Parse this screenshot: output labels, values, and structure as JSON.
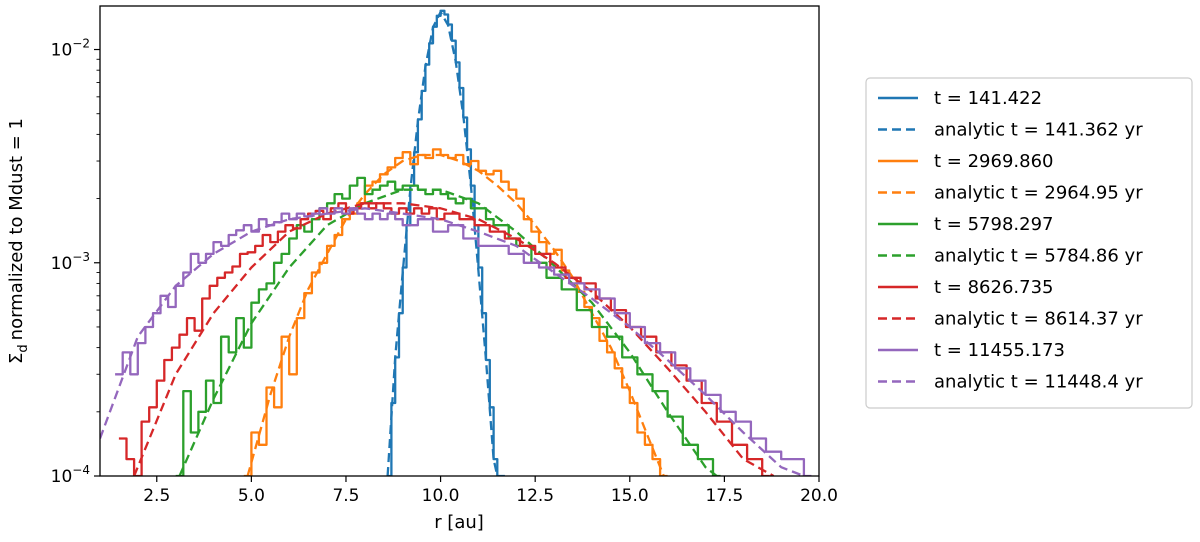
{
  "chart_data": {
    "type": "line",
    "title": "",
    "xlabel": "r [au]",
    "ylabel": "normalized to Mdust = 1",
    "ylabel_symbol": "Σ",
    "ylabel_subscript": "d",
    "xlim": [
      1.0,
      20.0
    ],
    "ylim": [
      0.0001,
      0.016
    ],
    "yscale": "log",
    "grid": false,
    "legend_position": "outside-right",
    "x_ticks": [
      2.5,
      5.0,
      7.5,
      10.0,
      12.5,
      15.0,
      17.5,
      20.0
    ],
    "x_tick_labels": [
      "2.5",
      "5.0",
      "7.5",
      "10.0",
      "12.5",
      "15.0",
      "17.5",
      "20.0"
    ],
    "y_major_ticks": [
      0.0001,
      0.001,
      0.01
    ],
    "y_tick_labels": [
      {
        "base": "10",
        "exp": "−4"
      },
      {
        "base": "10",
        "exp": "−3"
      },
      {
        "base": "10",
        "exp": "−2"
      }
    ],
    "series": [
      {
        "name": "t = 141.422",
        "style": "solid-step",
        "color": "#1f77b4",
        "x": [
          8.6,
          8.7,
          8.8,
          8.9,
          9.0,
          9.1,
          9.2,
          9.3,
          9.4,
          9.5,
          9.6,
          9.7,
          9.8,
          9.9,
          10.0,
          10.1,
          10.2,
          10.3,
          10.4,
          10.5,
          10.6,
          10.7,
          10.8,
          10.9,
          11.0,
          11.1,
          11.2,
          11.3,
          11.4,
          11.5
        ],
        "y": [
          0.0001,
          0.00022,
          0.00036,
          0.00058,
          0.00095,
          0.0015,
          0.0023,
          0.0033,
          0.0047,
          0.0064,
          0.0085,
          0.0107,
          0.0128,
          0.0144,
          0.0152,
          0.0146,
          0.0131,
          0.011,
          0.0087,
          0.0066,
          0.0048,
          0.0034,
          0.0023,
          0.0015,
          0.00095,
          0.00058,
          0.00035,
          0.00021,
          0.00012,
          0.0001
        ]
      },
      {
        "name": "analytic t = 141.362 yr",
        "style": "dashed",
        "color": "#1f77b4",
        "x": [
          8.6,
          8.8,
          9.0,
          9.2,
          9.4,
          9.6,
          9.8,
          10.0,
          10.2,
          10.4,
          10.6,
          10.8,
          11.0,
          11.2,
          11.4,
          11.5
        ],
        "y": [
          0.0001,
          0.00036,
          0.0009,
          0.0022,
          0.0046,
          0.0083,
          0.0127,
          0.015,
          0.013,
          0.0088,
          0.0049,
          0.0023,
          0.00092,
          0.00035,
          0.00012,
          0.0001
        ]
      },
      {
        "name": "t = 2969.860",
        "style": "solid-step",
        "color": "#ff7f0e",
        "x": [
          4.8,
          5.0,
          5.2,
          5.4,
          5.6,
          5.8,
          6.0,
          6.2,
          6.4,
          6.6,
          6.8,
          7.0,
          7.2,
          7.4,
          7.6,
          7.8,
          8.0,
          8.2,
          8.4,
          8.6,
          8.8,
          9.0,
          9.2,
          9.4,
          9.6,
          9.8,
          10.0,
          10.2,
          10.4,
          10.6,
          10.8,
          11.0,
          11.2,
          11.4,
          11.6,
          11.8,
          12.0,
          12.2,
          12.4,
          12.6,
          12.8,
          13.0,
          13.2,
          13.4,
          13.6,
          13.8,
          14.0,
          14.2,
          14.4,
          14.6,
          14.8,
          15.0,
          15.2,
          15.4,
          15.6,
          15.8
        ],
        "y": [
          0.0001,
          0.00016,
          0.00014,
          0.00026,
          0.00021,
          0.00045,
          0.0003,
          0.00055,
          0.00072,
          0.0009,
          0.001,
          0.0012,
          0.00135,
          0.0016,
          0.0017,
          0.0019,
          0.0023,
          0.0024,
          0.0026,
          0.0028,
          0.0031,
          0.0033,
          0.0029,
          0.0032,
          0.0031,
          0.0034,
          0.0032,
          0.0031,
          0.0032,
          0.0029,
          0.003,
          0.0027,
          0.0026,
          0.0027,
          0.0024,
          0.0022,
          0.002,
          0.0016,
          0.0014,
          0.00125,
          0.0011,
          0.00115,
          0.00092,
          0.00085,
          0.00073,
          0.00062,
          0.00055,
          0.00043,
          0.00038,
          0.00032,
          0.00026,
          0.00022,
          0.00016,
          0.00014,
          0.00012,
          0.0001
        ]
      },
      {
        "name": "analytic t = 2964.95 yr",
        "style": "dashed",
        "color": "#ff7f0e",
        "x": [
          4.9,
          5.5,
          6.0,
          6.5,
          7.0,
          7.5,
          8.0,
          8.5,
          9.0,
          9.5,
          10.0,
          10.5,
          11.0,
          11.5,
          12.0,
          12.5,
          13.0,
          13.5,
          14.0,
          14.5,
          15.0,
          15.5,
          15.9
        ],
        "y": [
          0.0001,
          0.00024,
          0.00045,
          0.00075,
          0.0011,
          0.0016,
          0.0021,
          0.0026,
          0.003,
          0.0032,
          0.0032,
          0.003,
          0.0027,
          0.0023,
          0.0019,
          0.0015,
          0.00115,
          0.00085,
          0.00058,
          0.0004,
          0.00025,
          0.00015,
          0.0001
        ]
      },
      {
        "name": "t = 5798.297",
        "style": "solid-step",
        "color": "#2ca02c",
        "x": [
          3.0,
          3.2,
          3.4,
          3.6,
          3.8,
          4.0,
          4.2,
          4.4,
          4.6,
          4.8,
          5.0,
          5.2,
          5.4,
          5.6,
          5.8,
          6.0,
          6.2,
          6.4,
          6.6,
          6.8,
          7.0,
          7.2,
          7.4,
          7.6,
          7.8,
          8.0,
          8.2,
          8.4,
          8.6,
          8.8,
          9.0,
          9.2,
          9.4,
          9.6,
          9.8,
          10.0,
          10.2,
          10.4,
          10.6,
          10.8,
          11.0,
          11.2,
          11.4,
          11.6,
          11.8,
          12.0,
          12.4,
          12.8,
          13.2,
          13.6,
          14.0,
          14.4,
          14.8,
          15.2,
          15.6,
          16.0,
          16.4,
          16.8,
          17.2
        ],
        "y": [
          0.0001,
          0.00025,
          0.00016,
          0.0002,
          0.00028,
          0.00022,
          0.00045,
          0.00038,
          0.00055,
          0.0004,
          0.00065,
          0.00075,
          0.0008,
          0.001,
          0.0011,
          0.0013,
          0.0015,
          0.0014,
          0.0016,
          0.0018,
          0.0019,
          0.0021,
          0.002,
          0.0023,
          0.0025,
          0.0021,
          0.0022,
          0.0023,
          0.0024,
          0.0022,
          0.0023,
          0.0023,
          0.0022,
          0.0021,
          0.0022,
          0.0021,
          0.002,
          0.0019,
          0.002,
          0.0018,
          0.0018,
          0.0016,
          0.0015,
          0.0015,
          0.0013,
          0.0012,
          0.001,
          0.00085,
          0.00075,
          0.0006,
          0.0005,
          0.00045,
          0.00036,
          0.0003,
          0.00025,
          0.00019,
          0.00014,
          0.00012,
          0.0001
        ]
      },
      {
        "name": "analytic t = 5784.86 yr",
        "style": "dashed",
        "color": "#2ca02c",
        "x": [
          3.1,
          4.0,
          5.0,
          6.0,
          7.0,
          8.0,
          9.0,
          10.0,
          11.0,
          12.0,
          13.0,
          14.0,
          15.0,
          16.0,
          17.0,
          17.3
        ],
        "y": [
          0.0001,
          0.00023,
          0.00052,
          0.00095,
          0.0015,
          0.0019,
          0.0022,
          0.0022,
          0.0019,
          0.0014,
          0.00097,
          0.00065,
          0.00038,
          0.0002,
          0.00011,
          0.0001
        ]
      },
      {
        "name": "t = 8626.735",
        "style": "solid-step",
        "color": "#d62728",
        "x": [
          1.5,
          1.7,
          1.9,
          2.1,
          2.3,
          2.5,
          2.7,
          2.9,
          3.1,
          3.3,
          3.5,
          3.7,
          3.9,
          4.1,
          4.3,
          4.5,
          4.7,
          4.9,
          5.1,
          5.3,
          5.5,
          5.7,
          5.9,
          6.1,
          6.3,
          6.5,
          6.7,
          6.9,
          7.1,
          7.3,
          7.5,
          7.7,
          7.9,
          8.1,
          8.3,
          8.5,
          8.7,
          8.9,
          9.1,
          9.3,
          9.5,
          9.7,
          9.9,
          10.1,
          10.5,
          10.9,
          11.3,
          11.7,
          12.1,
          12.5,
          12.9,
          13.3,
          13.7,
          14.1,
          14.5,
          14.9,
          15.3,
          15.7,
          16.1,
          16.5,
          16.9,
          17.3,
          17.7,
          18.1,
          18.5
        ],
        "y": [
          0.00015,
          0.00012,
          0.0001,
          0.00018,
          0.00021,
          0.00028,
          0.00035,
          0.0004,
          0.00046,
          0.00055,
          0.00048,
          0.00068,
          0.00078,
          0.00085,
          0.0009,
          0.00096,
          0.0011,
          0.00112,
          0.0012,
          0.00135,
          0.00125,
          0.0014,
          0.0015,
          0.00145,
          0.0016,
          0.0017,
          0.00175,
          0.0016,
          0.0018,
          0.0019,
          0.0017,
          0.0018,
          0.0019,
          0.0018,
          0.0019,
          0.0018,
          0.0017,
          0.0018,
          0.0017,
          0.0018,
          0.0017,
          0.0018,
          0.0016,
          0.0017,
          0.0016,
          0.0015,
          0.0014,
          0.0013,
          0.0012,
          0.0011,
          0.00095,
          0.00085,
          0.0008,
          0.00068,
          0.0006,
          0.0005,
          0.00045,
          0.00038,
          0.00033,
          0.00028,
          0.00022,
          0.00018,
          0.00014,
          0.00012,
          0.0001
        ]
      },
      {
        "name": "analytic t = 8614.37 yr",
        "style": "dashed",
        "color": "#d62728",
        "x": [
          1.9,
          3.0,
          4.0,
          5.0,
          6.0,
          7.0,
          8.0,
          9.0,
          10.0,
          11.0,
          12.0,
          13.0,
          14.0,
          15.0,
          16.0,
          17.0,
          18.0,
          18.8
        ],
        "y": [
          0.0001,
          0.0003,
          0.00058,
          0.00095,
          0.0014,
          0.0017,
          0.0019,
          0.0019,
          0.0018,
          0.0016,
          0.0013,
          0.001,
          0.00073,
          0.0005,
          0.00032,
          0.0002,
          0.00012,
          0.0001
        ]
      },
      {
        "name": "t = 11455.173",
        "style": "solid-step",
        "color": "#9467bd",
        "x": [
          1.4,
          1.6,
          1.8,
          2.0,
          2.2,
          2.4,
          2.6,
          2.8,
          3.0,
          3.2,
          3.4,
          3.6,
          3.8,
          4.0,
          4.2,
          4.4,
          4.6,
          4.8,
          5.0,
          5.2,
          5.4,
          5.6,
          5.8,
          6.0,
          6.2,
          6.4,
          6.6,
          6.8,
          7.0,
          7.2,
          7.4,
          7.6,
          7.8,
          8.0,
          8.2,
          8.4,
          8.6,
          8.8,
          9.0,
          9.4,
          9.8,
          10.2,
          10.6,
          11.0,
          11.4,
          11.8,
          12.2,
          12.6,
          13.0,
          13.4,
          13.8,
          14.2,
          14.6,
          15.0,
          15.4,
          15.8,
          16.2,
          16.6,
          17.0,
          17.4,
          17.8,
          18.2,
          18.6,
          19.0,
          19.4,
          19.6
        ],
        "y": [
          0.0003,
          0.00038,
          0.0003,
          0.00042,
          0.0005,
          0.00058,
          0.0007,
          0.00062,
          0.00078,
          0.0009,
          0.0011,
          0.001,
          0.0011,
          0.00125,
          0.0012,
          0.00135,
          0.00142,
          0.0015,
          0.0014,
          0.0016,
          0.0015,
          0.00155,
          0.0017,
          0.0016,
          0.0017,
          0.00165,
          0.0017,
          0.0018,
          0.0017,
          0.0018,
          0.0017,
          0.0018,
          0.0017,
          0.0016,
          0.0017,
          0.0016,
          0.0017,
          0.0016,
          0.0015,
          0.0016,
          0.0014,
          0.0015,
          0.0013,
          0.0012,
          0.0012,
          0.0011,
          0.001,
          0.00095,
          0.00088,
          0.0008,
          0.00075,
          0.00068,
          0.00058,
          0.0005,
          0.00042,
          0.00038,
          0.00032,
          0.00028,
          0.00024,
          0.0002,
          0.00018,
          0.00015,
          0.00013,
          0.00012,
          0.00012,
          0.0001
        ]
      },
      {
        "name": "analytic t = 11448.4 yr",
        "style": "dashed",
        "color": "#9467bd",
        "x": [
          1.0,
          2.0,
          3.0,
          4.0,
          5.0,
          6.0,
          7.0,
          8.0,
          9.0,
          10.0,
          11.0,
          12.0,
          13.0,
          14.0,
          15.0,
          16.0,
          17.0,
          18.0,
          19.0,
          19.6
        ],
        "y": [
          0.00015,
          0.00045,
          0.00078,
          0.0011,
          0.0014,
          0.0016,
          0.0017,
          0.0018,
          0.0017,
          0.0016,
          0.0014,
          0.0012,
          0.0009,
          0.00068,
          0.0005,
          0.00035,
          0.00024,
          0.00016,
          0.00011,
          0.0001
        ]
      }
    ]
  }
}
